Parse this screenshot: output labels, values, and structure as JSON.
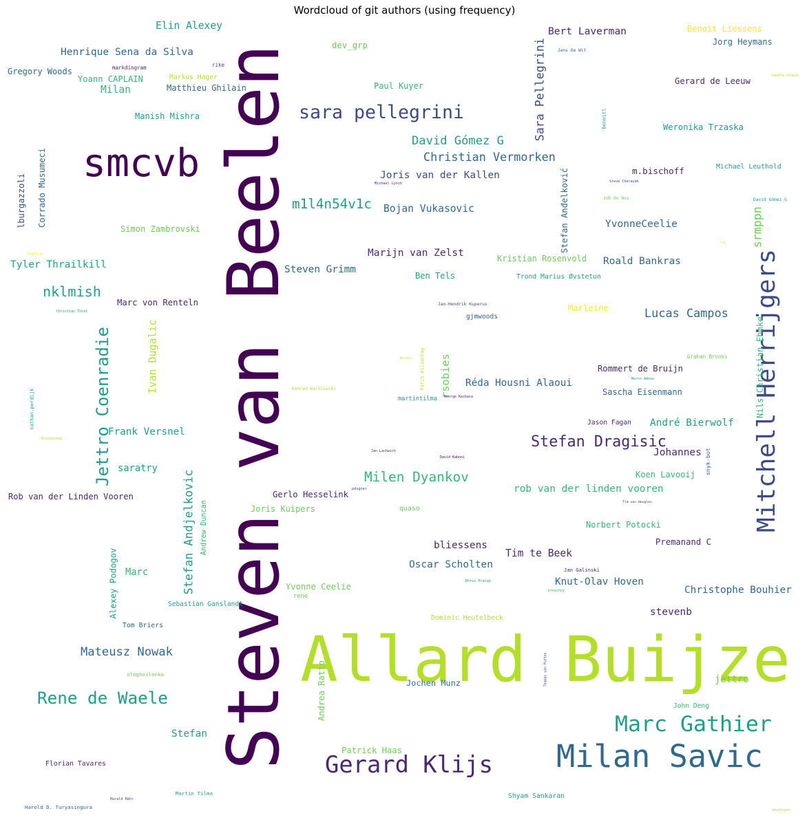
{
  "title": "Wordcloud of git authors (using frequency)",
  "colors": {
    "purple": "#440154",
    "indigo": "#482878",
    "blue": "#3e4989",
    "slate": "#31688e",
    "teal": "#26828e",
    "green": "#1f9e89",
    "sea": "#35b779",
    "lime": "#6ece58",
    "yellowgreen": "#b5de2b",
    "yellow": "#fde725"
  },
  "words": [
    {
      "text": "Steven van Beelen"
    },
    {
      "text": "Allard Buijze"
    },
    {
      "text": "smcvb"
    },
    {
      "text": "Milan Savic"
    },
    {
      "text": "Mitchell Herrijgers"
    },
    {
      "text": "Gerard Klijs"
    },
    {
      "text": "Marc Gathier"
    },
    {
      "text": "sara pellegrini"
    },
    {
      "text": "Rene de Waele"
    },
    {
      "text": "Jettro Coenradie"
    },
    {
      "text": "Stefan Dragisic"
    },
    {
      "text": "Milen Dyankov"
    },
    {
      "text": "nklmish"
    },
    {
      "text": "Stefan Andjelkovic"
    },
    {
      "text": "Lucas Campos"
    },
    {
      "text": "Sara Pellegrini"
    },
    {
      "text": "m1l4n54v1c"
    },
    {
      "text": "Mateusz Nowak"
    },
    {
      "text": "David Gómez G"
    },
    {
      "text": "Christian Vermorken"
    },
    {
      "text": "Henrique Sena da Silva"
    },
    {
      "text": "Elin Alexey"
    },
    {
      "text": "Bert Laverman"
    },
    {
      "text": "Joris van der Kallen"
    },
    {
      "text": "Bojan Vukasovic"
    },
    {
      "text": "Marijn van Zelst"
    },
    {
      "text": "Steven Grimm"
    },
    {
      "text": "Roald Bankras"
    },
    {
      "text": "YvonneCeelie"
    },
    {
      "text": "m.bischoff"
    },
    {
      "text": "Stefan Anđelković"
    },
    {
      "text": "Réda Housni Alaoui"
    },
    {
      "text": "Sascha Eisenmann"
    },
    {
      "text": "André Bierwolf"
    },
    {
      "text": "rob van der linden vooren"
    },
    {
      "text": "Oscar Scholten"
    },
    {
      "text": "Tim te Beek"
    },
    {
      "text": "Knut-Olav Hoven"
    },
    {
      "text": "Christophe Bouhier"
    },
    {
      "text": "stevenb"
    },
    {
      "text": "Frank Versnel"
    },
    {
      "text": "Ivan Dugalic"
    },
    {
      "text": "Nils Christian Ehmke"
    },
    {
      "text": "Tyler Thrailkill"
    },
    {
      "text": "Corrado Musumeci"
    },
    {
      "text": "Alexey Podogov"
    },
    {
      "text": "Stefan"
    },
    {
      "text": "Marc von Renteln"
    },
    {
      "text": "Gerlo Hesselink"
    },
    {
      "text": "Joris Kuipers"
    },
    {
      "text": "bliessens"
    },
    {
      "text": "Premanand C"
    },
    {
      "text": "Koen Lavooij"
    },
    {
      "text": "Johannes"
    },
    {
      "text": "Rommert de Bruijn"
    },
    {
      "text": "Norbert Potocki"
    },
    {
      "text": "Yvonne Ceelie"
    },
    {
      "text": "Gregory Woods"
    },
    {
      "text": "Yoann CAPLAIN"
    },
    {
      "text": "Milan"
    },
    {
      "text": "Matthieu Ghilain"
    },
    {
      "text": "Manish Mishra"
    },
    {
      "text": "Simon Zambrovski"
    },
    {
      "text": "saratry"
    },
    {
      "text": "Rob van der Linden Vooren"
    },
    {
      "text": "Marc"
    },
    {
      "text": "Andrea Ratto"
    },
    {
      "text": "Jochen Munz"
    },
    {
      "text": "jettro"
    },
    {
      "text": "Florian Tavares"
    },
    {
      "text": "Paul Kuyer"
    },
    {
      "text": "dev_grp"
    },
    {
      "text": "Benoit Liessens"
    },
    {
      "text": "Jorg Heymans"
    },
    {
      "text": "Gerard de Leeuw"
    },
    {
      "text": "Weronika Trzaska"
    },
    {
      "text": "Michael Leuthold"
    },
    {
      "text": "Marleine"
    },
    {
      "text": "Kristian Rosenvold"
    },
    {
      "text": "Trond Marius Øvstetun"
    },
    {
      "text": "Ben Tels"
    },
    {
      "text": "gjmwoods"
    },
    {
      "text": "rsobies"
    },
    {
      "text": "martintilma"
    },
    {
      "text": "Jason Fagan"
    },
    {
      "text": "srmppn"
    },
    {
      "text": "lburgazzoli"
    },
    {
      "text": "Markus Hager"
    },
    {
      "text": "Patrick Haas"
    },
    {
      "text": "Dominic Heutelbeck"
    },
    {
      "text": "Sebastian Ganslandt"
    },
    {
      "text": "Tom Briers"
    },
    {
      "text": "Andrew Duncan"
    },
    {
      "text": "John Deng"
    },
    {
      "text": "Shyam Sankaran"
    },
    {
      "text": "Martin Tilma"
    },
    {
      "text": "Harold D. Turyasingura"
    },
    {
      "text": "Harald Bähr"
    },
    {
      "text": "quaso"
    },
    {
      "text": "rene"
    },
    {
      "text": "oleghailenko"
    },
    {
      "text": "Jan-Hendrik Kuperus"
    },
    {
      "text": "David Gómez G"
    },
    {
      "text": "Grahan Brooks"
    },
    {
      "text": "Jens De Wit"
    },
    {
      "text": "markdingram"
    },
    {
      "text": "rike"
    },
    {
      "text": "Sandra Stueve"
    },
    {
      "text": "benoitl"
    },
    {
      "text": "Michael Lynch"
    },
    {
      "text": "Steve Cherayak"
    },
    {
      "text": "Job de Nos"
    },
    {
      "text": "jhatz1"
    },
    {
      "text": "Christian Thiel"
    },
    {
      "text": "Konrad Wachlowski"
    },
    {
      "text": "Fatih Alisantay"
    },
    {
      "text": "Keradin"
    },
    {
      "text": "George Kasbasa"
    },
    {
      "text": "nathan.perdijk"
    },
    {
      "text": "Brookesway"
    },
    {
      "text": "Jan Lachwich"
    },
    {
      "text": "David Kaboni"
    },
    {
      "text": "snyk-bot"
    },
    {
      "text": "Marco Ameve"
    },
    {
      "text": "Tim van Heuglen"
    },
    {
      "text": "Jan Galinski"
    },
    {
      "text": "Dhruv Pratap"
    },
    {
      "text": "brewchey"
    },
    {
      "text": "Thomas van Putten"
    },
    {
      "text": "developer"
    },
    {
      "text": "pdugner"
    },
    {
      "text": "ruk"
    }
  ]
}
